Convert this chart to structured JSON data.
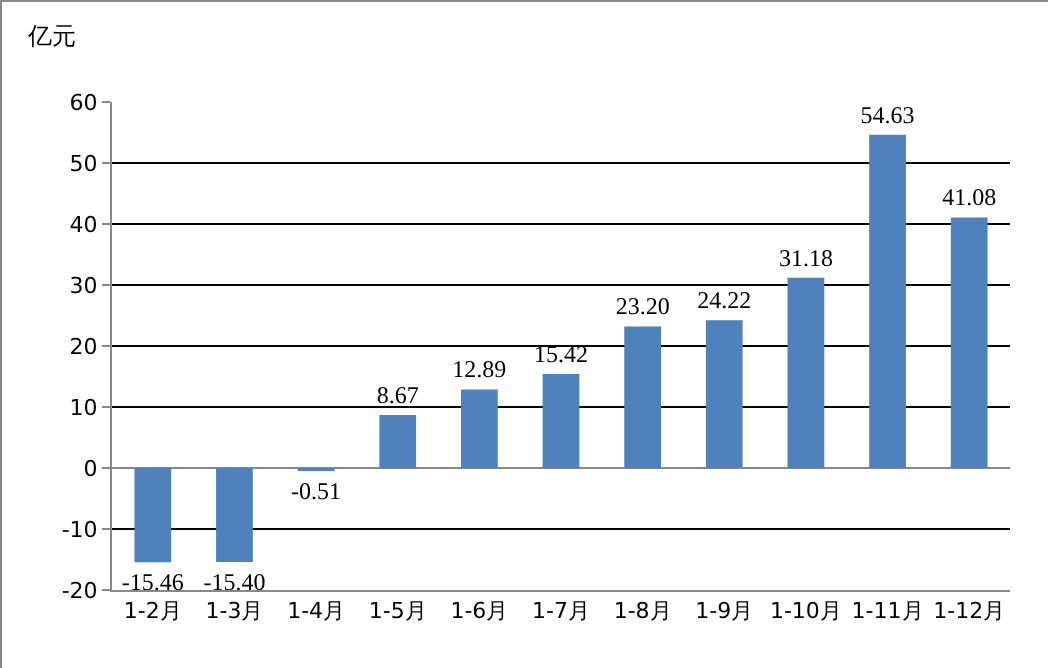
{
  "chart_data": {
    "type": "bar",
    "ylabel": "亿元",
    "categories": [
      "1-2月",
      "1-3月",
      "1-4月",
      "1-5月",
      "1-6月",
      "1-7月",
      "1-8月",
      "1-9月",
      "1-10月",
      "1-11月",
      "1-12月"
    ],
    "values": [
      -15.46,
      -15.4,
      -0.51,
      8.67,
      12.89,
      15.42,
      23.2,
      24.22,
      31.18,
      54.63,
      41.08
    ],
    "value_labels": [
      "-15.46",
      "-15.40",
      "-0.51",
      "8.67",
      "12.89",
      "15.42",
      "23.20",
      "24.22",
      "31.18",
      "54.63",
      "41.08"
    ],
    "color": "#4f81bd",
    "ylim": [
      -20,
      60
    ],
    "yticks": [
      -20,
      -10,
      0,
      10,
      20,
      30,
      40,
      50,
      60
    ],
    "grid": "y",
    "legend": false
  }
}
